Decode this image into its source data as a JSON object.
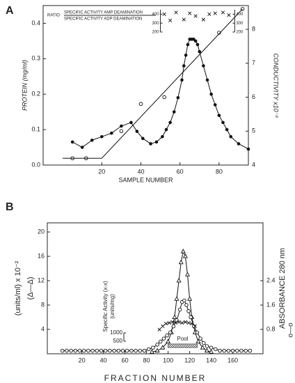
{
  "chart_data": [
    {
      "type": "line",
      "panel_label": "A",
      "xlabel": "SAMPLE NUMBER",
      "ylabel": "PROTEIN (mg/ml)",
      "y2label": "CONDUCTIVITY x10⁻³",
      "xlim": [
        -10,
        95
      ],
      "xticks": [
        20,
        40,
        60,
        80
      ],
      "ylim": [
        0,
        0.45
      ],
      "yticks": [
        {
          "value": 0,
          "label": "0.0"
        },
        0.1,
        0.2,
        0.3,
        0.4
      ],
      "y2lim": [
        4,
        8.7
      ],
      "y2ticks": [
        4,
        5,
        6,
        7,
        8
      ],
      "series": [
        {
          "marker": "filled-circle",
          "line": true,
          "color": "#111",
          "x": [
            5,
            10,
            15,
            20,
            25,
            30,
            35,
            38,
            41,
            45,
            48,
            51,
            53,
            55,
            57,
            59,
            61,
            62,
            63,
            64,
            65,
            66,
            67,
            68,
            69,
            70,
            72,
            74,
            76,
            78,
            80,
            82,
            84,
            86,
            90,
            95
          ],
          "values": [
            0.065,
            0.05,
            0.07,
            0.08,
            0.09,
            0.11,
            0.12,
            0.095,
            0.075,
            0.06,
            0.065,
            0.08,
            0.1,
            0.12,
            0.15,
            0.19,
            0.24,
            0.28,
            0.31,
            0.34,
            0.355,
            0.355,
            0.355,
            0.35,
            0.34,
            0.32,
            0.28,
            0.24,
            0.2,
            0.17,
            0.14,
            0.12,
            0.1,
            0.08,
            0.06,
            0.045
          ]
        },
        {
          "axis": "y2",
          "marker": "open-circle",
          "line": false,
          "color": "#111",
          "x": [
            5,
            12,
            30,
            40,
            52,
            80,
            92
          ],
          "values": [
            4.2,
            4.2,
            5.0,
            5.8,
            6.0,
            7.9,
            8.6
          ]
        },
        {
          "axis": "y2",
          "marker": "none",
          "line": true,
          "color": "#111",
          "x": [
            0,
            20,
            92
          ],
          "values": [
            4.2,
            4.2,
            8.6
          ]
        }
      ],
      "inset": {
        "labels": [
          "RATIO",
          "SPECIFIC ACTIVITY AMP DEAMINATION",
          "SPECIFIC ACTIVITY ADP DEAMINATION"
        ],
        "ylim": [
          200,
          450
        ],
        "yticks": [
          200,
          300,
          400
        ],
        "xlim": [
          50,
          88
        ],
        "x": [
          52,
          55,
          58,
          62,
          65,
          68,
          72,
          75,
          78,
          82,
          85
        ],
        "values": [
          400,
          330,
          420,
          340,
          410,
          380,
          340,
          400,
          410,
          420,
          390
        ]
      }
    },
    {
      "type": "line",
      "panel_label": "B",
      "xlabel": "FRACTION NUMBER",
      "ylabel": "(units/ml) x 10⁻²",
      "ylabel2": "(Δ—Δ)",
      "y2label": "ABSORBANCE  280 nm",
      "y2symbol": "o—o",
      "xlim": [
        -12,
        188
      ],
      "xticks": [
        20,
        40,
        60,
        80,
        100,
        120,
        140,
        160
      ],
      "ylim": [
        0,
        21.5
      ],
      "yticks": [
        4,
        8,
        12,
        16,
        20
      ],
      "y2lim": [
        0,
        4.3
      ],
      "y2ticks": [
        0.8,
        1.6,
        2.4
      ],
      "series": [
        {
          "marker": "triangle",
          "line": true,
          "color": "#111",
          "x": [
            85,
            90,
            95,
            100,
            103,
            106,
            108,
            110,
            112,
            114,
            116,
            118,
            120,
            122,
            125,
            128,
            132,
            136,
            140
          ],
          "values": [
            0.3,
            0.5,
            1,
            2,
            3.5,
            6,
            9,
            12,
            15,
            16.8,
            16,
            13,
            9,
            6,
            3.5,
            2,
            1,
            0.5,
            0.3
          ]
        },
        {
          "axis": "y2",
          "marker": "open-circle",
          "line": true,
          "color": "#111",
          "x": [
            2,
            6,
            10,
            14,
            18,
            22,
            26,
            30,
            34,
            38,
            42,
            46,
            50,
            54,
            58,
            62,
            66,
            70,
            74,
            78,
            82,
            86,
            90,
            93,
            96,
            99,
            102,
            105,
            108,
            111,
            113,
            115,
            117,
            119,
            121,
            124,
            127,
            130,
            133,
            136,
            140,
            144,
            148,
            152,
            156,
            160,
            164,
            168,
            172,
            176
          ],
          "values": [
            0.1,
            0.1,
            0.1,
            0.1,
            0.1,
            0.1,
            0.1,
            0.1,
            0.1,
            0.1,
            0.1,
            0.1,
            0.1,
            0.1,
            0.1,
            0.1,
            0.1,
            0.1,
            0.1,
            0.1,
            0.15,
            0.2,
            0.3,
            0.4,
            0.5,
            0.6,
            0.7,
            0.9,
            1.1,
            1.45,
            1.7,
            1.75,
            1.6,
            1.4,
            1.2,
            0.9,
            0.7,
            0.5,
            0.35,
            0.25,
            0.2,
            0.15,
            0.1,
            0.1,
            0.1,
            0.1,
            0.1,
            0.1,
            0.1,
            0.1
          ]
        }
      ],
      "inset": {
        "labels": [
          "Specific Activity (x-x)",
          "(units/mg)"
        ],
        "ylim": [
          0,
          5000
        ],
        "yticks": [
          500,
          1000
        ],
        "x": [
          92,
          95,
          98,
          101,
          104,
          107,
          110,
          113,
          116,
          119,
          122,
          125
        ],
        "values": [
          1200,
          1400,
          1550,
          1600,
          1650,
          1600,
          1650,
          1600,
          1650,
          1600,
          1550,
          1400
        ]
      },
      "pool": {
        "label": "Pool",
        "range": [
          100,
          127
        ]
      }
    }
  ]
}
